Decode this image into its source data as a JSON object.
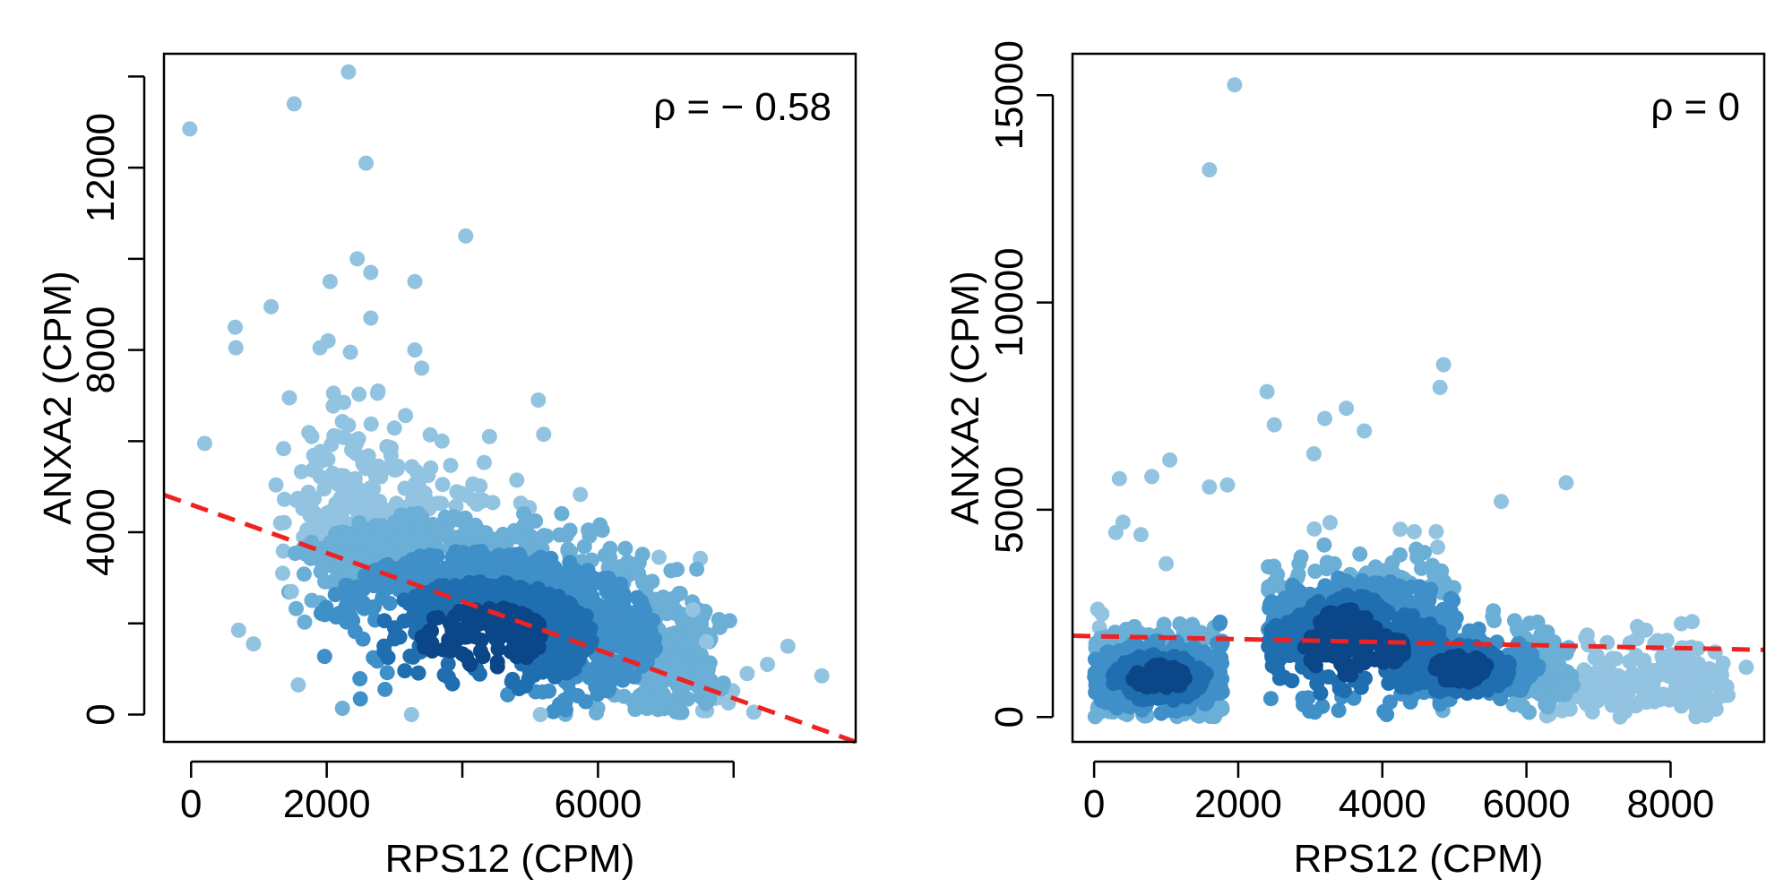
{
  "chart_data": [
    {
      "type": "scatter",
      "panel": "left",
      "xlabel": "RPS12 (CPM)",
      "ylabel": "ANXA2 (CPM)",
      "annotation": "ρ = − 0.58",
      "xlim": [
        -400,
        9800
      ],
      "ylim": [
        -600,
        14500
      ],
      "xticks": [
        0,
        2000,
        4000,
        6000,
        8000
      ],
      "xtick_labels": [
        "0",
        "2000",
        "",
        "6000",
        ""
      ],
      "yticks": [
        0,
        2000,
        4000,
        6000,
        8000,
        10000,
        12000,
        14000
      ],
      "ytick_labels": [
        "0",
        "",
        "4000",
        "",
        "8000",
        "",
        "12000",
        ""
      ],
      "trend_line": {
        "x": [
          -400,
          9800
        ],
        "y": [
          4820,
          -600
        ],
        "color": "#ee2222"
      },
      "density_colors": [
        "#92c3e0",
        "#6baed6",
        "#3f8fc8",
        "#1f6eb0",
        "#0b4688"
      ],
      "highlighted_points": [
        [
          -20,
          12850
        ],
        [
          200,
          5950
        ],
        [
          650,
          8500
        ],
        [
          660,
          8050
        ],
        [
          700,
          1850
        ],
        [
          920,
          1550
        ],
        [
          1180,
          8950
        ],
        [
          1450,
          6950
        ],
        [
          1480,
          2700
        ],
        [
          1520,
          13400
        ],
        [
          1580,
          650
        ],
        [
          1780,
          6100
        ],
        [
          1900,
          8050
        ],
        [
          2020,
          8200
        ],
        [
          2050,
          9500
        ],
        [
          2100,
          7050
        ],
        [
          2250,
          6850
        ],
        [
          2320,
          14100
        ],
        [
          2350,
          7950
        ],
        [
          2450,
          10000
        ],
        [
          2580,
          12100
        ],
        [
          2650,
          9700
        ],
        [
          2650,
          8700
        ],
        [
          2750,
          7050
        ],
        [
          2950,
          5850
        ],
        [
          3250,
          0
        ],
        [
          3300,
          9500
        ],
        [
          3300,
          8000
        ],
        [
          3400,
          7600
        ],
        [
          3700,
          6000
        ],
        [
          4050,
          10500
        ],
        [
          4400,
          6100
        ],
        [
          5120,
          6900
        ],
        [
          5200,
          6150
        ],
        [
          5150,
          0
        ],
        [
          6900,
          3450
        ],
        [
          8500,
          1100
        ],
        [
          8800,
          1500
        ],
        [
          9300,
          850
        ],
        [
          8200,
          900
        ],
        [
          7600,
          1600
        ],
        [
          7400,
          2300
        ],
        [
          1320,
          4200
        ],
        [
          1350,
          3100
        ],
        [
          1550,
          4700
        ]
      ],
      "cloud": {
        "center_x": 4300,
        "center_y": 1700,
        "count": 1500
      }
    },
    {
      "type": "scatter",
      "panel": "right",
      "xlabel": "RPS12 (CPM)",
      "ylabel": "ANXA2 (CPM)",
      "annotation": "ρ = 0",
      "xlim": [
        -300,
        9300
      ],
      "ylim": [
        -600,
        16000
      ],
      "xticks": [
        0,
        2000,
        4000,
        6000,
        8000
      ],
      "xtick_labels": [
        "0",
        "2000",
        "4000",
        "6000",
        "8000"
      ],
      "yticks": [
        0,
        5000,
        10000,
        15000
      ],
      "ytick_labels": [
        "0",
        "5000",
        "10000",
        "15000"
      ],
      "trend_line": {
        "x": [
          -300,
          9300
        ],
        "y": [
          1960,
          1620
        ],
        "color": "#ee2222"
      },
      "density_colors": [
        "#92c3e0",
        "#6baed6",
        "#3f8fc8",
        "#1f6eb0",
        "#0b4688"
      ],
      "highlighted_points": [
        [
          1950,
          15250
        ],
        [
          1600,
          13200
        ],
        [
          4850,
          8500
        ],
        [
          4800,
          7950
        ],
        [
          2400,
          7850
        ],
        [
          3500,
          7450
        ],
        [
          3200,
          7200
        ],
        [
          2500,
          7050
        ],
        [
          3750,
          6900
        ],
        [
          3050,
          6350
        ],
        [
          1050,
          6200
        ],
        [
          800,
          5800
        ],
        [
          350,
          5750
        ],
        [
          1600,
          5550
        ],
        [
          1850,
          5600
        ],
        [
          6550,
          5650
        ],
        [
          5650,
          5200
        ],
        [
          400,
          4700
        ],
        [
          300,
          4450
        ],
        [
          650,
          4400
        ],
        [
          9050,
          1200
        ],
        [
          8700,
          500
        ],
        [
          8500,
          400
        ],
        [
          8300,
          2300
        ],
        [
          8150,
          2250
        ],
        [
          7650,
          900
        ],
        [
          7300,
          0
        ],
        [
          7950,
          1850
        ],
        [
          1000,
          3700
        ],
        [
          50,
          2600
        ]
      ],
      "cloud": {
        "center_x": 3600,
        "center_y": 1600,
        "count": 1500
      }
    }
  ]
}
